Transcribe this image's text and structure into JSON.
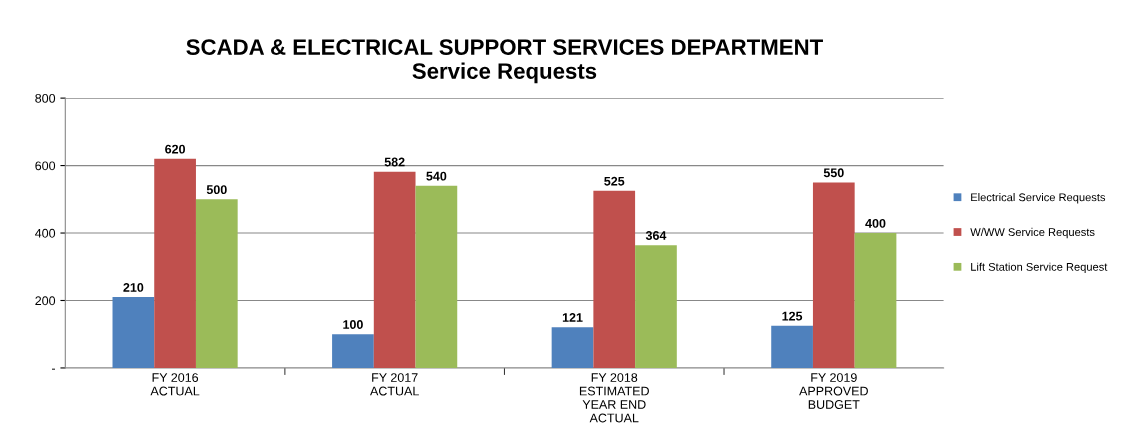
{
  "chart_data": {
    "type": "bar",
    "title": "SCADA & ELECTRICAL SUPPORT SERVICES DEPARTMENT\nService Requests",
    "categories": [
      "FY 2016\nACTUAL",
      "FY 2017\nACTUAL",
      "FY 2018\nESTIMATED\nYEAR END\nACTUAL",
      "FY 2019\nAPPROVED\nBUDGET"
    ],
    "series": [
      {
        "name": "Electrical Service Requests",
        "color": "#4f81bd",
        "values": [
          210,
          100,
          121,
          125
        ]
      },
      {
        "name": "W/WW Service Requests",
        "color": "#c0504d",
        "values": [
          620,
          582,
          525,
          550
        ]
      },
      {
        "name": "Lift Station Service Request",
        "color": "#9bbb59",
        "values": [
          500,
          540,
          364,
          400
        ]
      }
    ],
    "ylim": [
      0,
      800
    ],
    "yticks": [
      {
        "value": 0,
        "label": "-"
      },
      200,
      400,
      600,
      800
    ],
    "grid": "y",
    "legend": "right",
    "data_labels": true
  }
}
